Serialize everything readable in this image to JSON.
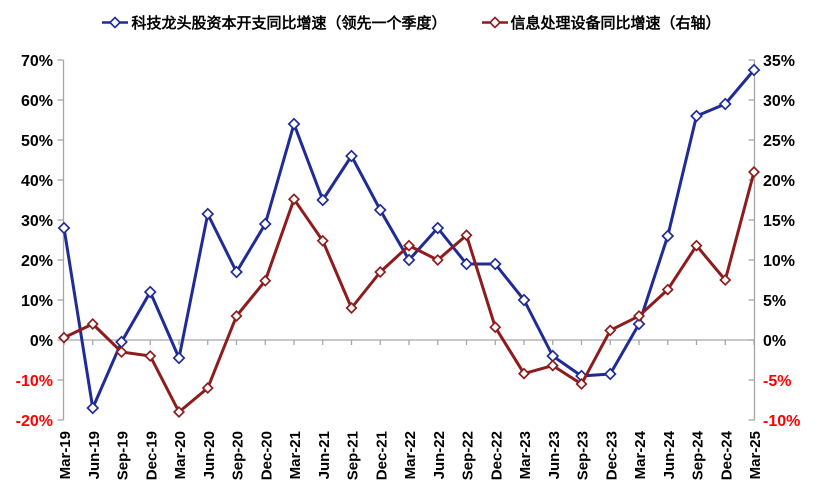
{
  "legend": {
    "items": [
      {
        "label": "科技龙头股资本开支同比增速（领先一个季度）",
        "color": "#202C96"
      },
      {
        "label": "信息处理设备同比增速（右轴）",
        "color": "#8E1C1C"
      }
    ]
  },
  "colors": {
    "blue_series": "#202C96",
    "red_series": "#8E1C1C",
    "axis_line": "#A6A6A6",
    "tick_label": "#000000",
    "negative_tick_label": "#FF0000",
    "background": "#FFFFFF"
  },
  "chart_data": {
    "type": "line",
    "title": "",
    "xlabel": "",
    "ylabel_left": "",
    "ylabel_right": "",
    "legend_position": "top",
    "grid": "zero-line-only",
    "categories": [
      "Mar-19",
      "Jun-19",
      "Sep-19",
      "Dec-19",
      "Mar-20",
      "Jun-20",
      "Sep-20",
      "Dec-20",
      "Mar-21",
      "Jun-21",
      "Sep-21",
      "Dec-21",
      "Mar-22",
      "Jun-22",
      "Sep-22",
      "Dec-22",
      "Mar-23",
      "Jun-23",
      "Sep-23",
      "Dec-23",
      "Mar-24",
      "Jun-24",
      "Sep-24",
      "Dec-24",
      "Mar-25"
    ],
    "series": [
      {
        "name": "科技龙头股资本开支同比增速（领先一个季度）",
        "axis": "left",
        "color": "#202C96",
        "marker": "diamond-open",
        "values": [
          28,
          -17,
          -0.5,
          12,
          -4.5,
          31.5,
          17,
          29,
          54,
          35,
          46,
          32.5,
          20,
          28,
          19,
          19,
          10,
          -4,
          -9,
          -8.5,
          4,
          26,
          56,
          59,
          67.5
        ]
      },
      {
        "name": "信息处理设备同比增速（右轴）",
        "axis": "right",
        "color": "#8E1C1C",
        "marker": "diamond-open",
        "values": [
          0.3,
          2,
          -1.5,
          -2,
          -9,
          -6,
          3,
          7.4,
          17.6,
          12.4,
          4,
          8.5,
          11.8,
          10,
          13.1,
          1.6,
          -4.2,
          -3.2,
          -5.5,
          1.2,
          3,
          6.3,
          11.8,
          7.5,
          21
        ]
      }
    ],
    "left_axis": {
      "min": -20,
      "max": 70,
      "step": 10,
      "unit": "%",
      "tick_labels": [
        "70%",
        "60%",
        "50%",
        "40%",
        "30%",
        "20%",
        "10%",
        "0%",
        "-10%",
        "-20%"
      ]
    },
    "right_axis": {
      "min": -10,
      "max": 35,
      "step": 5,
      "unit": "%",
      "tick_labels": [
        "35%",
        "30%",
        "25%",
        "20%",
        "15%",
        "10%",
        "5%",
        "0%",
        "-5%",
        "-10%"
      ]
    }
  }
}
